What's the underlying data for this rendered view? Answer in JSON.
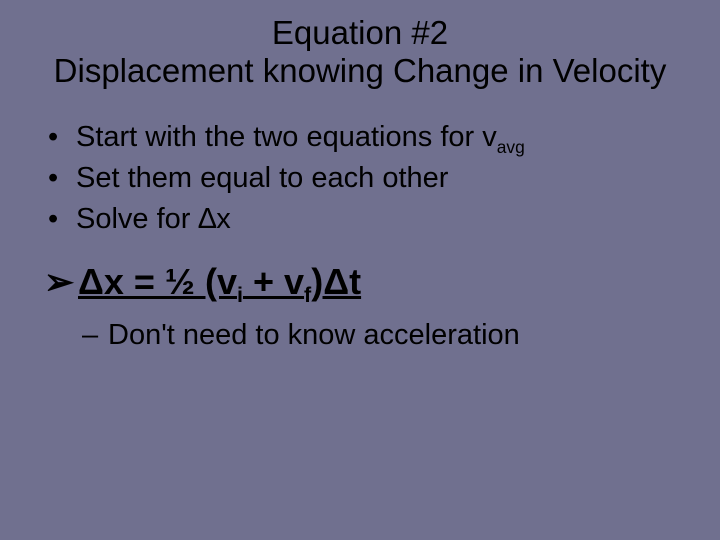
{
  "slide": {
    "background_color": "#70708f",
    "text_color": "#000000",
    "title": "Equation #2",
    "subtitle": "Displacement knowing Change in Velocity",
    "title_fontsize": 33,
    "bullet_fontsize": 29,
    "equation_fontsize": 36,
    "note_fontsize": 29,
    "bullets": [
      {
        "prefix": "Start with the two equations for v",
        "sub": "avg",
        "suffix": ""
      },
      {
        "prefix": "Set them equal to each other",
        "sub": "",
        "suffix": ""
      },
      {
        "prefix": "Solve for ∆x",
        "sub": "",
        "suffix": ""
      }
    ],
    "equation": {
      "marker": "➢",
      "part1": "Δx = ½ (v",
      "sub1": "i",
      "part2": " + v",
      "sub2": "f",
      "part3": ")Δt",
      "underline": true,
      "bold": true
    },
    "note": {
      "marker": "–",
      "text": "Don't need to know acceleration"
    }
  }
}
